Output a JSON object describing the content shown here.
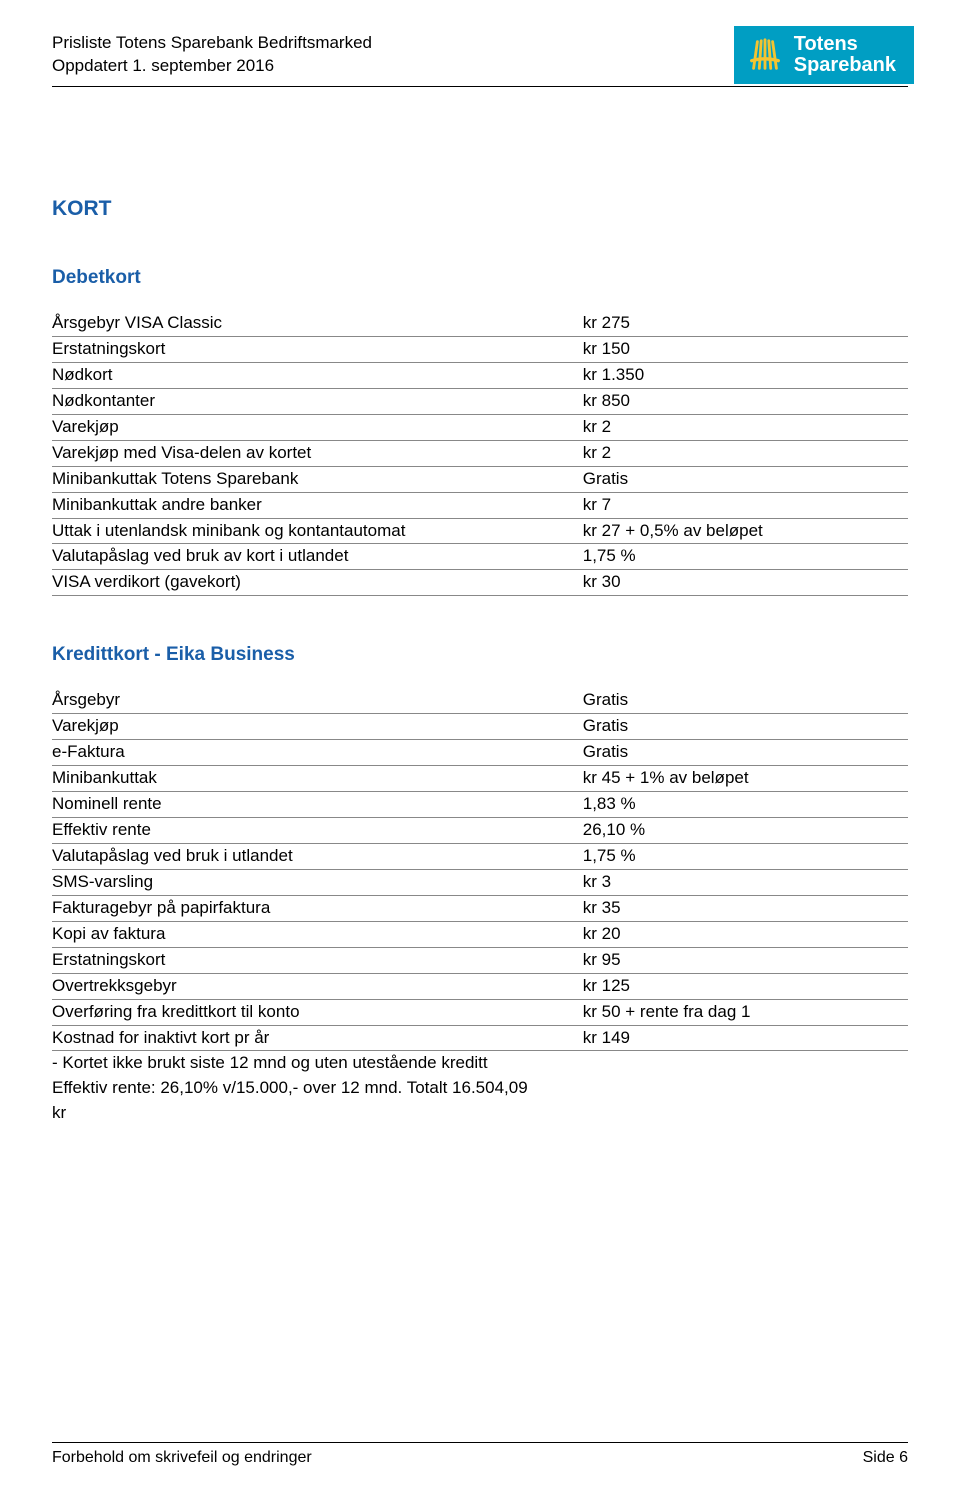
{
  "header": {
    "line1": "Prisliste Totens Sparebank Bedriftsmarked",
    "line2": "Oppdatert 1. september 2016",
    "logo_line1": "Totens",
    "logo_line2": "Sparebank",
    "logo_bg_color": "#009ec3",
    "logo_text_color": "#ffffff",
    "logo_icon_color": "#f4c430"
  },
  "colors": {
    "heading": "#1a5ea8",
    "text": "#000000",
    "row_border": "#888888"
  },
  "section_title": "KORT",
  "debetkort": {
    "title": "Debetkort",
    "rows": [
      {
        "label": "Årsgebyr VISA Classic",
        "value": "kr 275"
      },
      {
        "label": "Erstatningskort",
        "value": "kr 150"
      },
      {
        "label": "Nødkort",
        "value": "kr 1.350"
      },
      {
        "label": "Nødkontanter",
        "value": "kr 850"
      },
      {
        "label": "Varekjøp",
        "value": "kr 2"
      },
      {
        "label": "Varekjøp med Visa-delen av kortet",
        "value": "kr 2"
      },
      {
        "label": "Minibankuttak Totens Sparebank",
        "value": "Gratis"
      },
      {
        "label": "Minibankuttak andre banker",
        "value": "kr 7"
      },
      {
        "label": "Uttak i utenlandsk minibank og kontantautomat",
        "value": "kr 27 + 0,5% av beløpet"
      },
      {
        "label": "Valutapåslag ved bruk av kort i utlandet",
        "value": "1,75 %"
      },
      {
        "label": "VISA verdikort (gavekort)",
        "value": "kr 30"
      }
    ]
  },
  "kredittkort": {
    "title": "Kredittkort - Eika Business",
    "rows": [
      {
        "label": "Årsgebyr",
        "value": "Gratis"
      },
      {
        "label": "Varekjøp",
        "value": "Gratis"
      },
      {
        "label": "e-Faktura",
        "value": "Gratis"
      },
      {
        "label": "Minibankuttak",
        "value": "kr 45 + 1% av beløpet"
      },
      {
        "label": "Nominell rente",
        "value": "1,83 %"
      },
      {
        "label": "Effektiv rente",
        "value": "26,10 %"
      },
      {
        "label": "Valutapåslag ved bruk i utlandet",
        "value": "1,75 %"
      },
      {
        "label": "SMS-varsling",
        "value": "kr 3"
      },
      {
        "label": "Fakturagebyr på papirfaktura",
        "value": "kr 35"
      },
      {
        "label": "Kopi av faktura",
        "value": "kr 20"
      },
      {
        "label": "Erstatningskort",
        "value": "kr 95"
      },
      {
        "label": "Overtrekksgebyr",
        "value": "kr 125"
      },
      {
        "label": "Overføring fra kredittkort til konto",
        "value": "kr 50 + rente fra dag 1"
      },
      {
        "label": "Kostnad for inaktivt kort pr år",
        "value": "kr 149"
      }
    ],
    "notes": [
      "- Kortet ikke brukt siste 12 mnd og uten utestående kreditt",
      "Effektiv rente: 26,10% v/15.000,- over 12 mnd. Totalt 16.504,09",
      "kr"
    ]
  },
  "footer": {
    "left": "Forbehold om skrivefeil og endringer",
    "right": "Side 6"
  }
}
